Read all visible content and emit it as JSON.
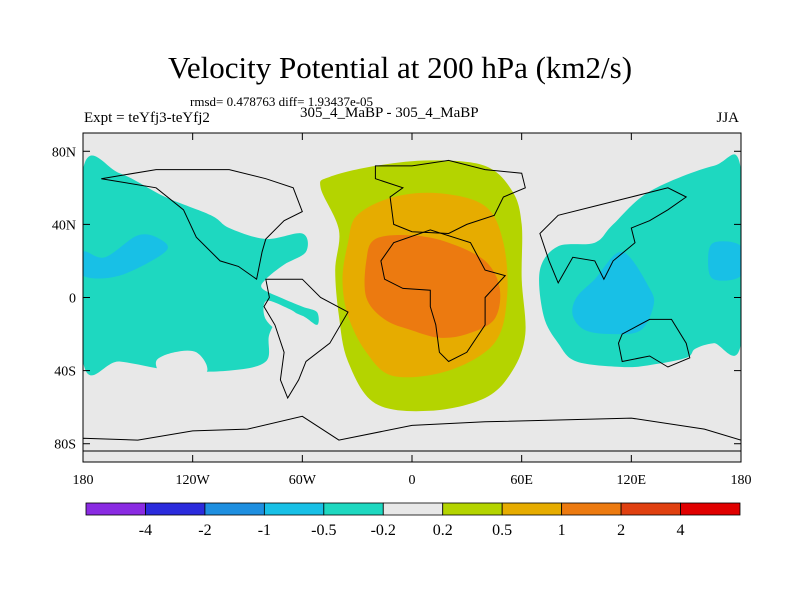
{
  "title": "Velocity Potential at 200 hPa (km2/s)",
  "stats": "rmsd= 0.478763 diff= 1.93437e-05",
  "experiment": "Expt = teYfj3-teYfj2",
  "case": "305_4_MaBP - 305_4_MaBP",
  "season": "JJA",
  "chart_data": {
    "type": "heatmap",
    "title": "Velocity Potential at 200 hPa (km2/s)",
    "x_ticks": [
      {
        "value": -180,
        "label": "180"
      },
      {
        "value": -120,
        "label": "120W"
      },
      {
        "value": -60,
        "label": "60W"
      },
      {
        "value": 0,
        "label": "0"
      },
      {
        "value": 60,
        "label": "60E"
      },
      {
        "value": 120,
        "label": "120E"
      },
      {
        "value": 180,
        "label": "180"
      }
    ],
    "y_ticks": [
      {
        "value": 80,
        "label": "80N"
      },
      {
        "value": 40,
        "label": "40N"
      },
      {
        "value": 0,
        "label": "0"
      },
      {
        "value": -40,
        "label": "40S"
      },
      {
        "value": -80,
        "label": "80S"
      }
    ],
    "xlim": [
      -180,
      180
    ],
    "ylim": [
      -90,
      90
    ],
    "levels": [
      -4,
      -2,
      -1,
      -0.5,
      -0.2,
      0.2,
      0.5,
      1,
      2,
      4
    ],
    "level_labels": [
      "-4",
      "-2",
      "-1",
      "-0.5",
      "-0.2",
      "0.2",
      "0.5",
      "1",
      "2",
      "4"
    ],
    "colors": [
      "#8a2be2",
      "#2b2bdc",
      "#1e8fe0",
      "#18c0e6",
      "#1ed8c0",
      "#e8e8e8",
      "#b4d400",
      "#e6ac00",
      "#ec7a10",
      "#e04010",
      "#e00000"
    ],
    "regions": [
      {
        "name": "positive-0.2-0.5",
        "level": 0.2,
        "color": "#b4d400",
        "polygon": [
          [
            -40,
            37
          ],
          [
            -50,
            60
          ],
          [
            -45,
            66
          ],
          [
            -20,
            72
          ],
          [
            10,
            75
          ],
          [
            40,
            72
          ],
          [
            55,
            58
          ],
          [
            60,
            40
          ],
          [
            60,
            10
          ],
          [
            62,
            -20
          ],
          [
            55,
            -40
          ],
          [
            40,
            -55
          ],
          [
            10,
            -62
          ],
          [
            -20,
            -58
          ],
          [
            -35,
            -35
          ],
          [
            -40,
            -10
          ],
          [
            -42,
            15
          ]
        ]
      },
      {
        "name": "positive-0.5-1",
        "level": 0.5,
        "color": "#e6ac00",
        "polygon": [
          [
            -35,
            30
          ],
          [
            -30,
            45
          ],
          [
            -10,
            55
          ],
          [
            15,
            57
          ],
          [
            40,
            50
          ],
          [
            50,
            30
          ],
          [
            52,
            0
          ],
          [
            45,
            -25
          ],
          [
            20,
            -40
          ],
          [
            -10,
            -43
          ],
          [
            -25,
            -30
          ],
          [
            -35,
            -10
          ],
          [
            -38,
            10
          ]
        ]
      },
      {
        "name": "positive-1-2",
        "level": 1,
        "color": "#ec7a10",
        "polygon": [
          [
            -25,
            20
          ],
          [
            -20,
            32
          ],
          [
            0,
            34
          ],
          [
            20,
            30
          ],
          [
            40,
            20
          ],
          [
            48,
            5
          ],
          [
            45,
            -12
          ],
          [
            30,
            -20
          ],
          [
            15,
            -22
          ],
          [
            0,
            -18
          ],
          [
            -15,
            -12
          ],
          [
            -25,
            0
          ]
        ]
      },
      {
        "name": "negative-west",
        "level": -0.5,
        "color": "#1ed8c0",
        "polygon": [
          [
            -180,
            70
          ],
          [
            -160,
            68
          ],
          [
            -135,
            55
          ],
          [
            -110,
            45
          ],
          [
            -100,
            38
          ],
          [
            -80,
            32
          ],
          [
            -60,
            35
          ],
          [
            -58,
            25
          ],
          [
            -70,
            18
          ],
          [
            -80,
            10
          ],
          [
            -82,
            5
          ],
          [
            -72,
            0
          ],
          [
            -60,
            -5
          ],
          [
            -52,
            -8
          ],
          [
            -52,
            -15
          ],
          [
            -60,
            -10
          ],
          [
            -70,
            -8
          ],
          [
            -78,
            -20
          ],
          [
            -80,
            -35
          ],
          [
            -100,
            -40
          ],
          [
            -130,
            -40
          ],
          [
            -160,
            -35
          ],
          [
            -180,
            -35
          ]
        ]
      },
      {
        "name": "negative-east",
        "level": -0.5,
        "color": "#1ed8c0",
        "polygon": [
          [
            180,
            70
          ],
          [
            165,
            72
          ],
          [
            130,
            58
          ],
          [
            110,
            40
          ],
          [
            100,
            30
          ],
          [
            80,
            28
          ],
          [
            70,
            15
          ],
          [
            72,
            -10
          ],
          [
            80,
            -25
          ],
          [
            90,
            -35
          ],
          [
            115,
            -38
          ],
          [
            130,
            -37
          ],
          [
            150,
            -33
          ],
          [
            155,
            -28
          ],
          [
            165,
            -25
          ],
          [
            180,
            -25
          ]
        ]
      },
      {
        "name": "negative-east-core",
        "level": -1,
        "color": "#18c0e6",
        "polygon": [
          [
            115,
            25
          ],
          [
            100,
            10
          ],
          [
            90,
            0
          ],
          [
            88,
            -10
          ],
          [
            95,
            -18
          ],
          [
            110,
            -20
          ],
          [
            125,
            -18
          ],
          [
            132,
            -5
          ],
          [
            130,
            5
          ]
        ]
      },
      {
        "name": "negative-west-core",
        "level": -1,
        "color": "#18c0e6",
        "polygon": [
          [
            -180,
            25
          ],
          [
            -168,
            22
          ],
          [
            -150,
            34
          ],
          [
            -138,
            32
          ],
          [
            -135,
            25
          ],
          [
            -160,
            12
          ],
          [
            -180,
            12
          ]
        ]
      },
      {
        "name": "negative-dateline-core",
        "level": -1,
        "color": "#18c0e6",
        "polygon": [
          [
            180,
            28
          ],
          [
            165,
            30
          ],
          [
            162,
            20
          ],
          [
            165,
            10
          ],
          [
            180,
            12
          ]
        ]
      }
    ],
    "holes": [
      {
        "name": "weak-eastern-pacific",
        "polygon": [
          [
            -140,
            -35
          ],
          [
            -130,
            -30
          ],
          [
            -118,
            -30
          ],
          [
            -112,
            -40
          ],
          [
            -122,
            -48
          ],
          [
            -135,
            -45
          ]
        ]
      },
      {
        "name": "weak-atlantic",
        "polygon": [
          [
            -80,
            -2
          ],
          [
            -70,
            -5
          ],
          [
            -62,
            -10
          ],
          [
            -58,
            -20
          ],
          [
            -70,
            -20
          ],
          [
            -80,
            -12
          ]
        ]
      }
    ]
  }
}
